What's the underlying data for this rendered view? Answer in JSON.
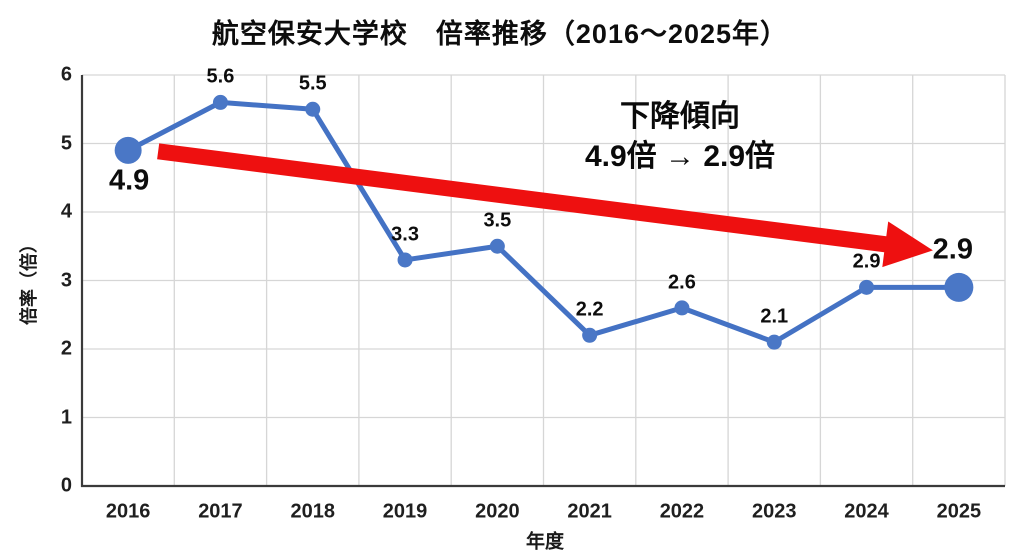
{
  "chart_title": "航空保安大学校　倍率推移（2016〜2025年）",
  "annotation": {
    "line1": "下降傾向",
    "line2": "4.9倍 → 2.9倍"
  },
  "chart_data": {
    "type": "line",
    "title": "航空保安大学校　倍率推移（2016〜2025年）",
    "xlabel": "年度",
    "ylabel": "倍率（倍）",
    "categories": [
      "2016",
      "2017",
      "2018",
      "2019",
      "2020",
      "2021",
      "2022",
      "2023",
      "2024",
      "2025"
    ],
    "values": [
      4.9,
      5.6,
      5.5,
      3.3,
      3.5,
      2.2,
      2.6,
      2.1,
      2.9,
      2.9
    ],
    "data_labels": [
      "4.9",
      "5.6",
      "5.5",
      "3.3",
      "3.5",
      "2.2",
      "2.6",
      "2.1",
      "2.9",
      "2.9"
    ],
    "ylim": [
      0,
      6
    ],
    "yticks": [
      0,
      1,
      2,
      3,
      4,
      5,
      6
    ],
    "grid": true,
    "legend": false,
    "line_color": "#4472c4",
    "marker_color": "#4a77c6",
    "gridline_color": "#d6d6d6",
    "axis_color": "#3a3a3a",
    "emphasized_categories": [
      "2016",
      "2025"
    ],
    "trend_arrow": {
      "color": "#ee1010",
      "label": "下降傾向 4.9倍 → 2.9倍",
      "from_category": "2016",
      "from_value": 4.9,
      "to_category": "2025",
      "to_value": 2.9
    }
  }
}
